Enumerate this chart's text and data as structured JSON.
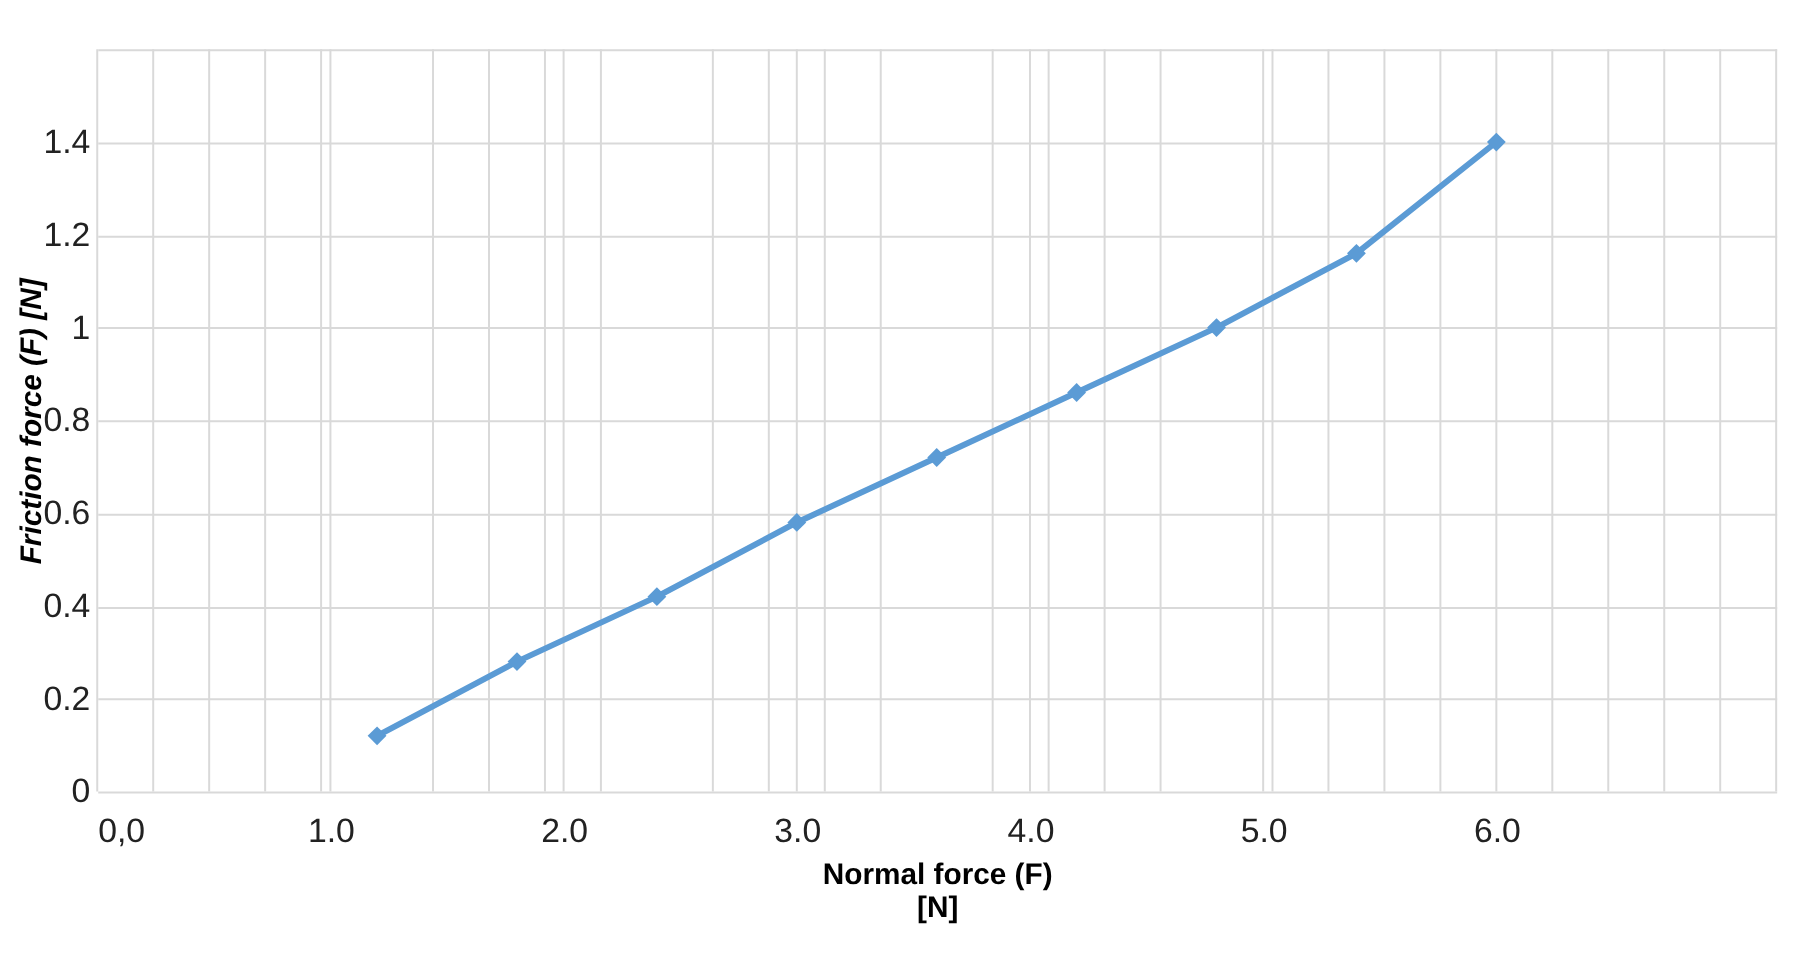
{
  "chart_data": {
    "type": "line",
    "xlabel": "Normal force  (F)\n[N]",
    "ylabel": "Friction    force     (F) [N]",
    "x": [
      1.2,
      1.8,
      2.4,
      3.0,
      3.6,
      4.2,
      4.8,
      5.4,
      6.0
    ],
    "series": [
      {
        "color": "#5b9bd5",
        "values": [
          0.12,
          0.28,
          0.42,
          0.58,
          0.72,
          0.86,
          1.0,
          1.16,
          1.4
        ]
      }
    ],
    "xlim": [
      0,
      7.2
    ],
    "xticks": [
      {
        "value": 0,
        "label": "0,0"
      },
      {
        "value": 1,
        "label": "1.0"
      },
      {
        "value": 2,
        "label": "2.0"
      },
      {
        "value": 3,
        "label": "3.0"
      },
      {
        "value": 4,
        "label": "4.0"
      },
      {
        "value": 5,
        "label": "5.0"
      },
      {
        "value": 6,
        "label": "6.0"
      },
      {
        "value": 0.24,
        "label": null
      },
      {
        "value": 0.48,
        "label": null
      },
      {
        "value": 0.72,
        "label": null
      },
      {
        "value": 0.96,
        "label": null
      },
      {
        "value": 1.44,
        "label": null
      },
      {
        "value": 1.68,
        "label": null
      },
      {
        "value": 1.92,
        "label": null
      },
      {
        "value": 2.16,
        "label": null
      },
      {
        "value": 2.64,
        "label": null
      },
      {
        "value": 2.88,
        "label": null
      },
      {
        "value": 3.12,
        "label": null
      },
      {
        "value": 3.36,
        "label": null
      },
      {
        "value": 3.84,
        "label": null
      },
      {
        "value": 4.08,
        "label": null
      },
      {
        "value": 4.32,
        "label": null
      },
      {
        "value": 4.56,
        "label": null
      },
      {
        "value": 5.04,
        "label": null
      },
      {
        "value": 5.28,
        "label": null
      },
      {
        "value": 5.52,
        "label": null
      },
      {
        "value": 5.76,
        "label": null
      },
      {
        "value": 6.24,
        "label": null
      },
      {
        "value": 6.48,
        "label": null
      },
      {
        "value": 6.72,
        "label": null
      },
      {
        "value": 6.96,
        "label": null
      },
      {
        "value": 7.2,
        "label": null
      }
    ],
    "ylim": [
      0,
      1.6
    ],
    "yticks": [
      0,
      0.2,
      0.4,
      0.6,
      0.8,
      1,
      1.2,
      1.4,
      {
        "value": 1.6,
        "label": null
      }
    ],
    "grid": true,
    "marker": "diamond",
    "line_style": "solid"
  }
}
